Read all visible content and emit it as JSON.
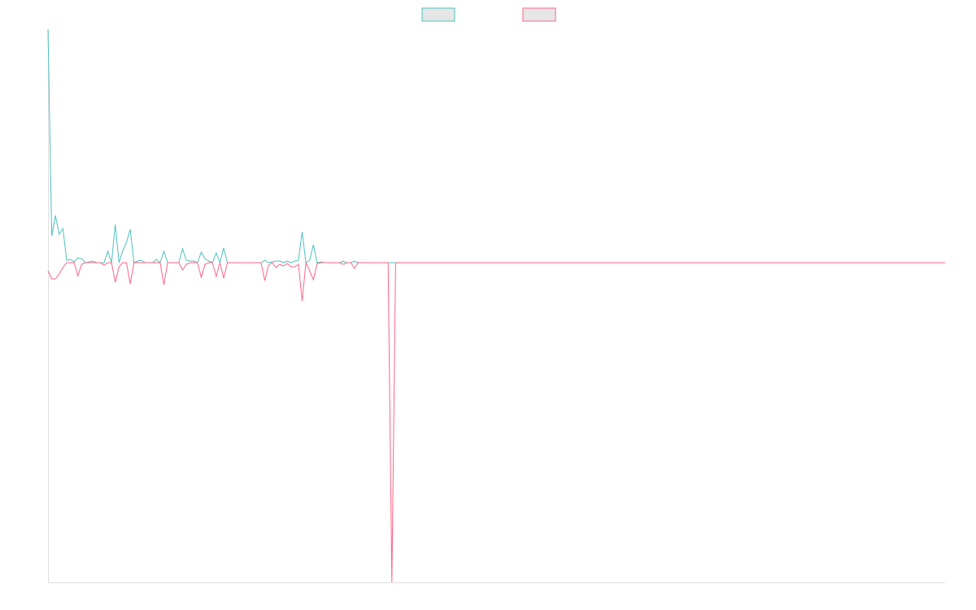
{
  "chart_data": {
    "type": "line",
    "legend": "top",
    "grid": false,
    "xlim": [
      0,
      240
    ],
    "ylim": [
      -393,
      287
    ],
    "series": [
      {
        "color": "#4bc0c0",
        "values": [
          287,
          33,
          58,
          35,
          42,
          3,
          4,
          1,
          6,
          5,
          0,
          1,
          2,
          0,
          0,
          0,
          14,
          0,
          47,
          0,
          15,
          25,
          41,
          0,
          2,
          3,
          0,
          0,
          0,
          4,
          0,
          14,
          0,
          0,
          0,
          0,
          17,
          3,
          2,
          2,
          0,
          13,
          5,
          2,
          0,
          12,
          0,
          18,
          0,
          0,
          0,
          0,
          0,
          0,
          0,
          0,
          0,
          0,
          3,
          0,
          1,
          2,
          2,
          0,
          2,
          0,
          2,
          3,
          38,
          0,
          3,
          22,
          0,
          1,
          0,
          0,
          0,
          0,
          0,
          2,
          0,
          0,
          2,
          0,
          0,
          0,
          0,
          0,
          0,
          0,
          0,
          0,
          0,
          0,
          0,
          0,
          0,
          0,
          0,
          0,
          0,
          0,
          0,
          0,
          0,
          0,
          0,
          0,
          0,
          0,
          0,
          0,
          0,
          0,
          0,
          0,
          0,
          0,
          0,
          0,
          0,
          0,
          0,
          0,
          0,
          0,
          0,
          0,
          0,
          0,
          0,
          0,
          0,
          0,
          0,
          0,
          0,
          0,
          0,
          0,
          0,
          0,
          0,
          0,
          0,
          0,
          0,
          0,
          0,
          0,
          0,
          0,
          0,
          0,
          0,
          0,
          0,
          0,
          0,
          0,
          0,
          0,
          0,
          0,
          0,
          0,
          0,
          0,
          0,
          0,
          0,
          0,
          0,
          0,
          0,
          0,
          0,
          0,
          0,
          0,
          0,
          0,
          0,
          0,
          0,
          0,
          0,
          0,
          0,
          0,
          0,
          0,
          0,
          0,
          0,
          0,
          0,
          0,
          0,
          0,
          0,
          0,
          0,
          0,
          0,
          0,
          0,
          0,
          0,
          0,
          0,
          0,
          0,
          0,
          0,
          0,
          0,
          0,
          0,
          0,
          0,
          0,
          0,
          0,
          0,
          0,
          0,
          0,
          0,
          0,
          0,
          0,
          0,
          0,
          0,
          0,
          0,
          0,
          0,
          0,
          0
        ]
      },
      {
        "color": "#ff6384",
        "values": [
          -10,
          -20,
          -20,
          -14,
          -6,
          0,
          0,
          0,
          -16,
          -2,
          0,
          0,
          0,
          0,
          0,
          -3,
          0,
          0,
          -24,
          -5,
          0,
          0,
          -26,
          0,
          0,
          0,
          0,
          0,
          0,
          0,
          0,
          -27,
          0,
          0,
          0,
          0,
          -9,
          -2,
          0,
          0,
          0,
          -18,
          -2,
          0,
          0,
          -17,
          0,
          -19,
          0,
          0,
          0,
          0,
          0,
          0,
          0,
          0,
          0,
          0,
          -22,
          -3,
          0,
          -6,
          -2,
          -4,
          -1,
          -5,
          -5,
          -2,
          -47,
          0,
          -10,
          -21,
          -1,
          0,
          0,
          0,
          0,
          0,
          0,
          -2,
          0,
          0,
          -7,
          0,
          0,
          0,
          0,
          0,
          0,
          0,
          0,
          0,
          -393,
          0,
          0,
          0,
          0,
          0,
          0,
          0,
          0,
          0,
          0,
          0,
          0,
          0,
          0,
          0,
          0,
          0,
          0,
          0,
          0,
          0,
          0,
          0,
          0,
          0,
          0,
          0,
          0,
          0,
          0,
          0,
          0,
          0,
          0,
          0,
          0,
          0,
          0,
          0,
          0,
          0,
          0,
          0,
          0,
          0,
          0,
          0,
          0,
          0,
          0,
          0,
          0,
          0,
          0,
          0,
          0,
          0,
          0,
          0,
          0,
          0,
          0,
          0,
          0,
          0,
          0,
          0,
          0,
          0,
          0,
          0,
          0,
          0,
          0,
          0,
          0,
          0,
          0,
          0,
          0,
          0,
          0,
          0,
          0,
          0,
          0,
          0,
          0,
          0,
          0,
          0,
          0,
          0,
          0,
          0,
          0,
          0,
          0,
          0,
          0,
          0,
          0,
          0,
          0,
          0,
          0,
          0,
          0,
          0,
          0,
          0,
          0,
          0,
          0,
          0,
          0,
          0,
          0,
          0,
          0,
          0,
          0,
          0,
          0,
          0,
          0,
          0,
          0,
          0,
          0,
          0,
          0,
          0,
          0,
          0,
          0,
          0,
          0,
          0,
          0,
          0,
          0,
          0,
          0,
          0,
          0,
          0,
          0
        ]
      }
    ]
  }
}
